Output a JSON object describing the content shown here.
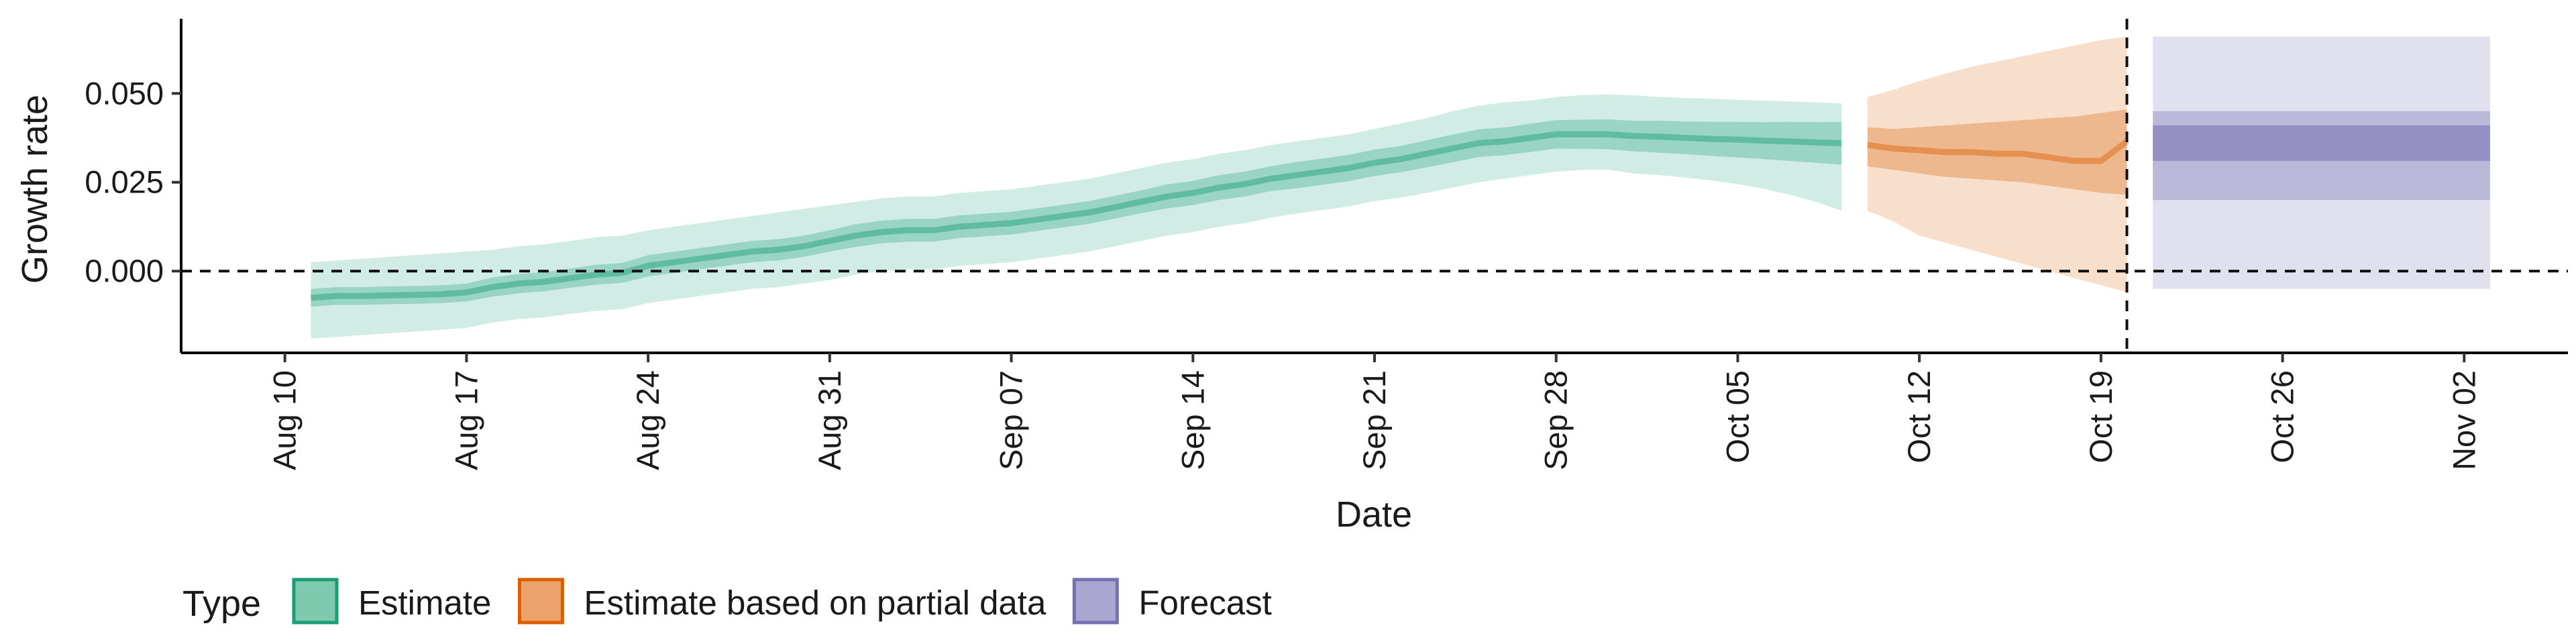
{
  "chart_data": {
    "type": "area",
    "xlabel": "Date",
    "ylabel": "Growth rate",
    "x_axis_type": "date",
    "xlim": [
      "2020-08-06",
      "2020-11-06"
    ],
    "ylim": [
      -0.023,
      0.071
    ],
    "x_ticks": [
      {
        "date": "2020-08-10",
        "label": "Aug 10"
      },
      {
        "date": "2020-08-17",
        "label": "Aug 17"
      },
      {
        "date": "2020-08-24",
        "label": "Aug 24"
      },
      {
        "date": "2020-08-31",
        "label": "Aug 31"
      },
      {
        "date": "2020-09-07",
        "label": "Sep 07"
      },
      {
        "date": "2020-09-14",
        "label": "Sep 14"
      },
      {
        "date": "2020-09-21",
        "label": "Sep 21"
      },
      {
        "date": "2020-09-28",
        "label": "Sep 28"
      },
      {
        "date": "2020-10-05",
        "label": "Oct 05"
      },
      {
        "date": "2020-10-12",
        "label": "Oct 12"
      },
      {
        "date": "2020-10-19",
        "label": "Oct 19"
      },
      {
        "date": "2020-10-26",
        "label": "Oct 26"
      },
      {
        "date": "2020-11-02",
        "label": "Nov 02"
      }
    ],
    "y_ticks": [
      {
        "value": 0.0,
        "label": "0.000"
      },
      {
        "value": 0.025,
        "label": "0.025"
      },
      {
        "value": 0.05,
        "label": "0.050"
      }
    ],
    "reference_lines": [
      {
        "orientation": "horizontal",
        "value": 0,
        "style": "dashed"
      },
      {
        "orientation": "vertical",
        "date": "2020-10-20",
        "style": "dashed"
      }
    ],
    "grid": false,
    "legend": {
      "title": "Type",
      "position": "bottom",
      "entries": [
        {
          "label": "Estimate",
          "fill": "#7fc9ae",
          "stroke": "#1b9e77"
        },
        {
          "label": "Estimate based on partial data",
          "fill": "#eca26b",
          "stroke": "#d95f02"
        },
        {
          "label": "Forecast",
          "fill": "#a9a6d0",
          "stroke": "#7570b3"
        }
      ]
    },
    "series": [
      {
        "name": "Estimate",
        "color": "#1b9e77",
        "x": [
          "2020-08-11",
          "2020-08-12",
          "2020-08-13",
          "2020-08-14",
          "2020-08-15",
          "2020-08-16",
          "2020-08-17",
          "2020-08-18",
          "2020-08-19",
          "2020-08-20",
          "2020-08-21",
          "2020-08-22",
          "2020-08-23",
          "2020-08-24",
          "2020-08-25",
          "2020-08-26",
          "2020-08-27",
          "2020-08-28",
          "2020-08-29",
          "2020-08-30",
          "2020-08-31",
          "2020-09-01",
          "2020-09-02",
          "2020-09-03",
          "2020-09-04",
          "2020-09-05",
          "2020-09-06",
          "2020-09-07",
          "2020-09-08",
          "2020-09-09",
          "2020-09-10",
          "2020-09-11",
          "2020-09-12",
          "2020-09-13",
          "2020-09-14",
          "2020-09-15",
          "2020-09-16",
          "2020-09-17",
          "2020-09-18",
          "2020-09-19",
          "2020-09-20",
          "2020-09-21",
          "2020-09-22",
          "2020-09-23",
          "2020-09-24",
          "2020-09-25",
          "2020-09-26",
          "2020-09-27",
          "2020-09-28",
          "2020-09-29",
          "2020-09-30",
          "2020-10-01",
          "2020-10-02",
          "2020-10-03",
          "2020-10-04",
          "2020-10-05",
          "2020-10-06",
          "2020-10-07",
          "2020-10-08",
          "2020-10-09"
        ],
        "median": [
          -0.0075,
          -0.007,
          -0.007,
          -0.0068,
          -0.0067,
          -0.0065,
          -0.006,
          -0.0045,
          -0.0035,
          -0.003,
          -0.002,
          -0.001,
          -0.0005,
          0.0015,
          0.0025,
          0.0035,
          0.0045,
          0.0055,
          0.006,
          0.007,
          0.0085,
          0.01,
          0.011,
          0.0115,
          0.0115,
          0.0125,
          0.013,
          0.0135,
          0.0145,
          0.0155,
          0.0165,
          0.018,
          0.0195,
          0.021,
          0.022,
          0.0235,
          0.0245,
          0.026,
          0.027,
          0.028,
          0.029,
          0.0305,
          0.0315,
          0.033,
          0.0345,
          0.036,
          0.0365,
          0.0375,
          0.0385,
          0.0385,
          0.0385,
          0.038,
          0.0378,
          0.0375,
          0.0372,
          0.037,
          0.0367,
          0.0365,
          0.0362,
          0.036
        ],
        "lower_50": [
          -0.01,
          -0.0095,
          -0.0095,
          -0.0093,
          -0.0092,
          -0.009,
          -0.0085,
          -0.0072,
          -0.0062,
          -0.0057,
          -0.0047,
          -0.0038,
          -0.0033,
          -0.0015,
          -0.0005,
          0.0005,
          0.0015,
          0.0025,
          0.003,
          0.004,
          0.0055,
          0.0068,
          0.0078,
          0.0083,
          0.0083,
          0.0093,
          0.0098,
          0.0103,
          0.0113,
          0.0123,
          0.0133,
          0.0148,
          0.0163,
          0.0176,
          0.0186,
          0.02,
          0.021,
          0.0225,
          0.0233,
          0.0243,
          0.0253,
          0.0268,
          0.0278,
          0.0292,
          0.0306,
          0.0321,
          0.0326,
          0.0335,
          0.0345,
          0.0344,
          0.0343,
          0.0337,
          0.0333,
          0.0329,
          0.0324,
          0.032,
          0.0315,
          0.031,
          0.0305,
          0.03
        ],
        "upper_50": [
          -0.005,
          -0.0045,
          -0.0045,
          -0.0043,
          -0.0042,
          -0.004,
          -0.0035,
          -0.0018,
          -0.0008,
          -0.0003,
          0.0007,
          0.0018,
          0.0023,
          0.0045,
          0.0055,
          0.0065,
          0.0075,
          0.0085,
          0.009,
          0.01,
          0.0115,
          0.0132,
          0.0142,
          0.0147,
          0.0147,
          0.0157,
          0.0162,
          0.0167,
          0.0177,
          0.0187,
          0.0197,
          0.0212,
          0.0227,
          0.0244,
          0.0254,
          0.027,
          0.028,
          0.0295,
          0.0307,
          0.0317,
          0.0327,
          0.0342,
          0.0352,
          0.0368,
          0.0384,
          0.0399,
          0.0404,
          0.0415,
          0.0425,
          0.0426,
          0.0427,
          0.0423,
          0.0423,
          0.0421,
          0.042,
          0.042,
          0.0419,
          0.042,
          0.0419,
          0.042
        ],
        "lower_90": [
          -0.019,
          -0.0185,
          -0.018,
          -0.0175,
          -0.017,
          -0.0165,
          -0.016,
          -0.0145,
          -0.0135,
          -0.013,
          -0.012,
          -0.0112,
          -0.0107,
          -0.009,
          -0.008,
          -0.007,
          -0.006,
          -0.005,
          -0.0045,
          -0.0035,
          -0.0025,
          -0.001,
          0.0,
          0.0005,
          0.0005,
          0.0015,
          0.002,
          0.0025,
          0.0035,
          0.0045,
          0.0055,
          0.007,
          0.0085,
          0.01,
          0.011,
          0.0125,
          0.0135,
          0.015,
          0.0162,
          0.0172,
          0.0182,
          0.0197,
          0.0207,
          0.022,
          0.0235,
          0.025,
          0.026,
          0.027,
          0.028,
          0.0285,
          0.0285,
          0.0275,
          0.027,
          0.0263,
          0.0255,
          0.0245,
          0.0232,
          0.0215,
          0.0195,
          0.017
        ],
        "upper_90": [
          0.0025,
          0.003,
          0.0035,
          0.004,
          0.0045,
          0.005,
          0.0055,
          0.006,
          0.007,
          0.0075,
          0.0085,
          0.0095,
          0.01,
          0.0115,
          0.0125,
          0.0135,
          0.0145,
          0.0155,
          0.0165,
          0.0175,
          0.0185,
          0.0195,
          0.0205,
          0.021,
          0.021,
          0.022,
          0.0225,
          0.023,
          0.024,
          0.025,
          0.026,
          0.0275,
          0.029,
          0.0305,
          0.0315,
          0.033,
          0.034,
          0.0355,
          0.0365,
          0.0375,
          0.0385,
          0.04,
          0.0415,
          0.043,
          0.045,
          0.0465,
          0.0475,
          0.048,
          0.049,
          0.0495,
          0.0497,
          0.0495,
          0.049,
          0.0487,
          0.0485,
          0.0482,
          0.048,
          0.0477,
          0.0475,
          0.0472
        ]
      },
      {
        "name": "Estimate based on partial data",
        "color": "#d95f02",
        "x": [
          "2020-10-10",
          "2020-10-11",
          "2020-10-12",
          "2020-10-13",
          "2020-10-14",
          "2020-10-15",
          "2020-10-16",
          "2020-10-17",
          "2020-10-18",
          "2020-10-19",
          "2020-10-20"
        ],
        "median": [
          0.0355,
          0.0345,
          0.034,
          0.0335,
          0.0335,
          0.033,
          0.033,
          0.032,
          0.031,
          0.031,
          0.0365
        ],
        "lower_50": [
          0.0295,
          0.0285,
          0.0275,
          0.0265,
          0.026,
          0.0255,
          0.025,
          0.024,
          0.023,
          0.022,
          0.0215
        ],
        "upper_50": [
          0.0405,
          0.04,
          0.0405,
          0.041,
          0.0415,
          0.042,
          0.0425,
          0.043,
          0.0435,
          0.0445,
          0.0455
        ],
        "lower_90": [
          0.017,
          0.014,
          0.01,
          0.008,
          0.006,
          0.004,
          0.002,
          0.0,
          -0.002,
          -0.004,
          -0.006
        ],
        "upper_90": [
          0.049,
          0.051,
          0.0535,
          0.0555,
          0.0575,
          0.059,
          0.0605,
          0.062,
          0.0635,
          0.065,
          0.066
        ]
      },
      {
        "name": "Forecast",
        "color": "#7570b3",
        "x": [
          "2020-10-21",
          "2020-11-03"
        ],
        "lower_50": [
          0.031,
          0.031
        ],
        "upper_50": [
          0.041,
          0.041
        ],
        "lower_75": [
          0.02,
          0.02
        ],
        "upper_75": [
          0.045,
          0.045
        ],
        "lower_90": [
          -0.005,
          -0.005
        ],
        "upper_90": [
          0.066,
          0.066
        ]
      }
    ]
  }
}
